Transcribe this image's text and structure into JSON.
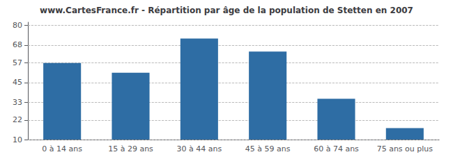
{
  "chart_data": {
    "type": "bar",
    "title": "www.CartesFrance.fr - Répartition par âge de la population de Stetten en 2007",
    "categories": [
      "0 à 14 ans",
      "15 à 29 ans",
      "30 à 44 ans",
      "45 à 59 ans",
      "60 à 74 ans",
      "75 ans ou plus"
    ],
    "values": [
      57,
      51,
      72,
      64,
      35,
      17
    ],
    "color": "#2e6da4",
    "ylim": [
      10,
      82
    ],
    "yticks": [
      10,
      22,
      33,
      45,
      57,
      68,
      80
    ],
    "grid": true
  }
}
